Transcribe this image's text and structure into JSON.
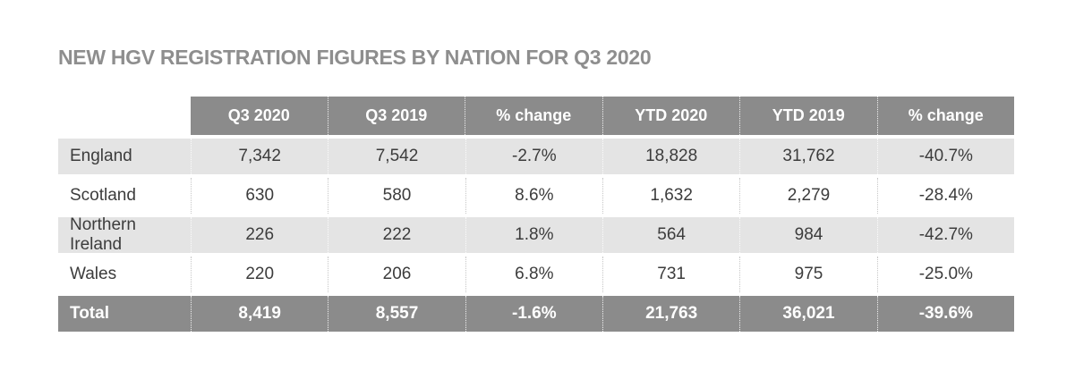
{
  "title": "NEW HGV REGISTRATION FIGURES BY NATION FOR Q3 2020",
  "chart_data": {
    "type": "table",
    "title": "NEW HGV REGISTRATION FIGURES BY NATION FOR Q3 2020",
    "columns": [
      "",
      "Q3 2020",
      "Q3 2019",
      "% change",
      "YTD 2020",
      "YTD 2019",
      "% change"
    ],
    "rows": [
      {
        "label": "England",
        "values": [
          "7,342",
          "7,542",
          "-2.7%",
          "18,828",
          "31,762",
          "-40.7%"
        ]
      },
      {
        "label": "Scotland",
        "values": [
          "630",
          "580",
          "8.6%",
          "1,632",
          "2,279",
          "-28.4%"
        ]
      },
      {
        "label": "Northern Ireland",
        "values": [
          "226",
          "222",
          "1.8%",
          "564",
          "984",
          "-42.7%"
        ]
      },
      {
        "label": "Wales",
        "values": [
          "220",
          "206",
          "6.8%",
          "731",
          "975",
          "-25.0%"
        ]
      }
    ],
    "total": {
      "label": "Total",
      "values": [
        "8,419",
        "8,557",
        "-1.6%",
        "21,763",
        "36,021",
        "-39.6%"
      ]
    }
  },
  "colors": {
    "header_bg": "#8b8b8b",
    "total_bg": "#8b8b8b",
    "row_alt_bg": "#e4e4e4",
    "row_bg": "#ffffff",
    "header_text": "#ffffff",
    "body_text": "#3c3c3c",
    "title_text": "#8e8e8e"
  }
}
